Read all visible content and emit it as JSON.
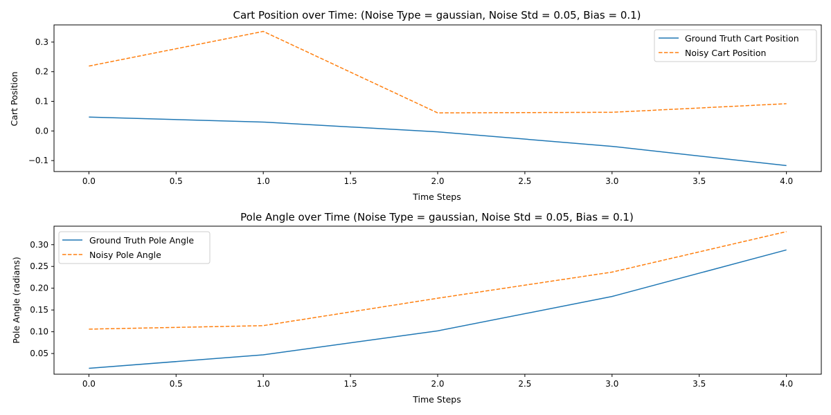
{
  "chart_data": [
    {
      "type": "line",
      "title": "Cart Position over Time: (Noise Type = gaussian, Noise Std = 0.05, Bias = 0.1)",
      "xlabel": "Time Steps",
      "ylabel": "Cart Position",
      "x": [
        0,
        1,
        2,
        3,
        4
      ],
      "xlim": [
        -0.2,
        4.2
      ],
      "ylim": [
        -0.137,
        0.358
      ],
      "xticks": [
        0.0,
        0.5,
        1.0,
        1.5,
        2.0,
        2.5,
        3.0,
        3.5,
        4.0
      ],
      "xtick_labels": [
        "0.0",
        "0.5",
        "1.0",
        "1.5",
        "2.0",
        "2.5",
        "3.0",
        "3.5",
        "4.0"
      ],
      "yticks": [
        -0.1,
        0.0,
        0.1,
        0.2,
        0.3
      ],
      "ytick_labels": [
        "−0.1",
        "0.0",
        "0.1",
        "0.2",
        "0.3"
      ],
      "grid": false,
      "legend_position": "top-right",
      "series": [
        {
          "name": "Ground Truth Cart Position",
          "values": [
            0.047,
            0.03,
            -0.003,
            -0.052,
            -0.117
          ],
          "color": "#1f77b4",
          "style": "solid"
        },
        {
          "name": "Noisy Cart Position",
          "values": [
            0.219,
            0.336,
            0.061,
            0.063,
            0.092
          ],
          "color": "#ff7f0e",
          "style": "dashed"
        }
      ]
    },
    {
      "type": "line",
      "title": "Pole Angle over Time (Noise Type = gaussian, Noise Std = 0.05, Bias = 0.1)",
      "xlabel": "Time Steps",
      "ylabel": "Pole Angle (radians)",
      "x": [
        0,
        1,
        2,
        3,
        4
      ],
      "xlim": [
        -0.2,
        4.2
      ],
      "ylim": [
        0.0025,
        0.3425
      ],
      "xticks": [
        0.0,
        0.5,
        1.0,
        1.5,
        2.0,
        2.5,
        3.0,
        3.5,
        4.0
      ],
      "xtick_labels": [
        "0.0",
        "0.5",
        "1.0",
        "1.5",
        "2.0",
        "2.5",
        "3.0",
        "3.5",
        "4.0"
      ],
      "yticks": [
        0.05,
        0.1,
        0.15,
        0.2,
        0.25,
        0.3
      ],
      "ytick_labels": [
        "0.05",
        "0.10",
        "0.15",
        "0.20",
        "0.25",
        "0.30"
      ],
      "grid": false,
      "legend_position": "top-left",
      "series": [
        {
          "name": "Ground Truth Pole Angle",
          "values": [
            0.016,
            0.047,
            0.102,
            0.181,
            0.288
          ],
          "color": "#1f77b4",
          "style": "solid"
        },
        {
          "name": "Noisy Pole Angle",
          "values": [
            0.106,
            0.114,
            0.177,
            0.237,
            0.33
          ],
          "color": "#ff7f0e",
          "style": "dashed"
        }
      ]
    }
  ]
}
